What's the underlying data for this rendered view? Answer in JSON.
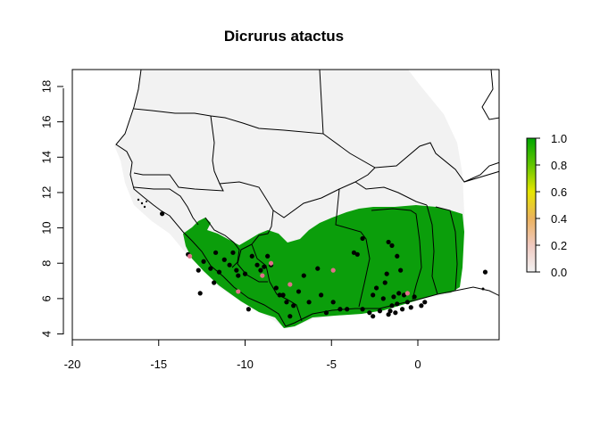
{
  "title": "Dicrurus atactus",
  "x_axis": {
    "ticks": [
      "-20",
      "-15",
      "-10",
      "-5",
      "0"
    ],
    "values": [
      -20,
      -15,
      -10,
      -5,
      0
    ],
    "range": [
      -20.2,
      4.5
    ]
  },
  "y_axis": {
    "ticks": [
      "4",
      "6",
      "8",
      "10",
      "12",
      "14",
      "16",
      "18"
    ],
    "values": [
      4,
      6,
      8,
      10,
      12,
      14,
      16,
      18
    ],
    "range": [
      3.6,
      19
    ]
  },
  "legend": {
    "placement": "right",
    "ticks": [
      "0.0",
      "0.2",
      "0.4",
      "0.6",
      "0.8",
      "1.0"
    ],
    "values": [
      0,
      0.2,
      0.4,
      0.6,
      0.8,
      1.0
    ],
    "gradient": [
      "#f2f2f2",
      "#f0c9c0",
      "#ebb25e",
      "#e6e600",
      "#63c600",
      "#00a600"
    ]
  },
  "colors": {
    "background_region": "#f2f2f2",
    "suitable_habitat": "#0b9e0b",
    "occurrence_points": "#000000",
    "highlight_points": "#e0708a",
    "borders": "#000000"
  },
  "chart_data": {
    "type": "scatter",
    "title": "Dicrurus atactus",
    "xlim": [
      -20,
      4
    ],
    "ylim": [
      4,
      19
    ],
    "occurrence_black": [
      [
        -13.3,
        8.5
      ],
      [
        -12.7,
        7.6
      ],
      [
        -12.4,
        8.1
      ],
      [
        -12.0,
        7.7
      ],
      [
        -11.7,
        8.6
      ],
      [
        -11.5,
        7.5
      ],
      [
        -11.2,
        8.2
      ],
      [
        -10.9,
        7.9
      ],
      [
        -10.7,
        8.6
      ],
      [
        -10.5,
        7.6
      ],
      [
        -10.0,
        7.4
      ],
      [
        -9.6,
        8.4
      ],
      [
        -9.3,
        7.9
      ],
      [
        -9.1,
        7.6
      ],
      [
        -8.9,
        7.8
      ],
      [
        -8.7,
        8.4
      ],
      [
        -8.5,
        7.9
      ],
      [
        -8.2,
        6.6
      ],
      [
        -8.0,
        6.2
      ],
      [
        -7.8,
        6.2
      ],
      [
        -7.6,
        5.8
      ],
      [
        -7.4,
        5.0
      ],
      [
        -7.2,
        5.6
      ],
      [
        -6.9,
        6.4
      ],
      [
        -6.3,
        5.8
      ],
      [
        -5.8,
        7.7
      ],
      [
        -5.6,
        6.2
      ],
      [
        -5.3,
        5.2
      ],
      [
        -4.9,
        5.8
      ],
      [
        -4.5,
        5.4
      ],
      [
        -4.1,
        5.4
      ],
      [
        -3.7,
        8.6
      ],
      [
        -3.5,
        8.5
      ],
      [
        -3.2,
        5.4
      ],
      [
        -2.8,
        5.2
      ],
      [
        -2.6,
        6.2
      ],
      [
        -2.4,
        6.6
      ],
      [
        -2.2,
        5.3
      ],
      [
        -2.0,
        6.0
      ],
      [
        -1.9,
        6.9
      ],
      [
        -1.8,
        7.4
      ],
      [
        -1.7,
        5.1
      ],
      [
        -1.6,
        5.3
      ],
      [
        -1.5,
        5.6
      ],
      [
        -1.4,
        6.1
      ],
      [
        -1.3,
        5.2
      ],
      [
        -1.2,
        5.7
      ],
      [
        -1.1,
        6.3
      ],
      [
        -1.0,
        7.6
      ],
      [
        -0.9,
        5.4
      ],
      [
        -0.8,
        6.2
      ],
      [
        -0.6,
        5.8
      ],
      [
        -0.4,
        5.5
      ],
      [
        -0.2,
        6.1
      ],
      [
        0.2,
        5.6
      ],
      [
        0.4,
        5.8
      ],
      [
        -1.7,
        9.2
      ],
      [
        -1.5,
        9.0
      ],
      [
        -1.2,
        8.4
      ],
      [
        -3.2,
        9.4
      ],
      [
        -2.6,
        5.0
      ],
      [
        -14.8,
        10.8
      ],
      [
        3.9,
        7.5
      ],
      [
        -12.6,
        6.3
      ],
      [
        -11.8,
        6.9
      ],
      [
        -10.4,
        7.3
      ],
      [
        -9.8,
        5.4
      ],
      [
        -6.6,
        7.3
      ]
    ],
    "occurrence_highlight": [
      [
        -10.4,
        6.4
      ],
      [
        -7.4,
        6.8
      ],
      [
        -4.9,
        7.6
      ],
      [
        -0.6,
        6.3
      ],
      [
        -9.0,
        7.3
      ],
      [
        -8.5,
        8.0
      ],
      [
        -13.2,
        8.4
      ]
    ]
  }
}
